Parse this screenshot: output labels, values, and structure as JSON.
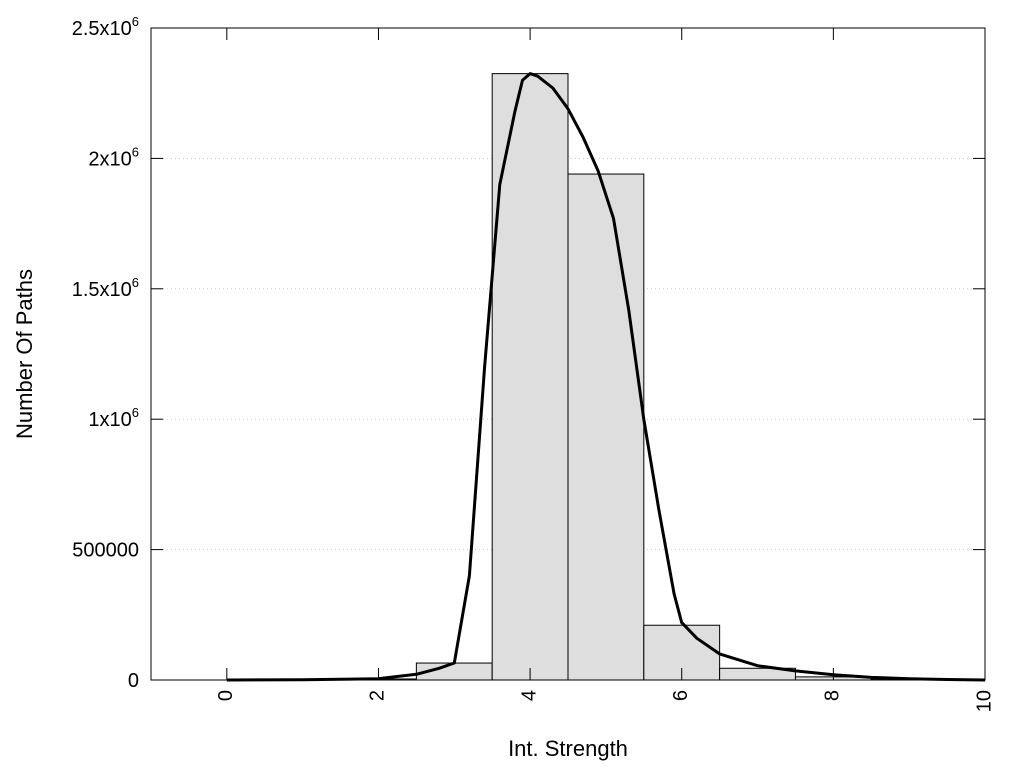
{
  "chart_data": {
    "type": "bar",
    "title": "",
    "xlabel": "Int. Strength",
    "ylabel": "Number Of Paths",
    "xlim": [
      -1,
      10
    ],
    "ylim": [
      0,
      2500000
    ],
    "grid": {
      "y": true,
      "x": false
    },
    "x_ticks": [
      {
        "value": 0,
        "label": "0"
      },
      {
        "value": 2,
        "label": "2"
      },
      {
        "value": 4,
        "label": "4"
      },
      {
        "value": 6,
        "label": "6"
      },
      {
        "value": 8,
        "label": "8"
      },
      {
        "value": 10,
        "label": "10"
      }
    ],
    "y_ticks": [
      {
        "value": 0,
        "base": "0",
        "sup": ""
      },
      {
        "value": 500000,
        "base": "500000",
        "sup": ""
      },
      {
        "value": 1000000,
        "base": "1x10",
        "sup": "6"
      },
      {
        "value": 1500000,
        "base": "1.5x10",
        "sup": "6"
      },
      {
        "value": 2000000,
        "base": "2x10",
        "sup": "6"
      },
      {
        "value": 2500000,
        "base": "2.5x10",
        "sup": "6"
      }
    ],
    "bar_width": 1,
    "bars": [
      {
        "x": 0,
        "value": 0
      },
      {
        "x": 1,
        "value": 1000
      },
      {
        "x": 2,
        "value": 4000
      },
      {
        "x": 3,
        "value": 65000
      },
      {
        "x": 4,
        "value": 2325000
      },
      {
        "x": 5,
        "value": 1940000
      },
      {
        "x": 6,
        "value": 210000
      },
      {
        "x": 7,
        "value": 45000
      },
      {
        "x": 8,
        "value": 12000
      },
      {
        "x": 9,
        "value": 4000
      },
      {
        "x": 10,
        "value": 2000
      }
    ],
    "curve": {
      "x": [
        0,
        1,
        2,
        2.5,
        2.8,
        3.0,
        3.2,
        3.4,
        3.6,
        3.8,
        3.9,
        4.0,
        4.1,
        4.3,
        4.5,
        4.7,
        4.9,
        5.1,
        5.3,
        5.5,
        5.7,
        5.9,
        6.0,
        6.2,
        6.5,
        7.0,
        7.5,
        8.0,
        8.5,
        9.0,
        9.5,
        10.0
      ],
      "y": [
        0,
        1000,
        5000,
        22000,
        45000,
        65000,
        400000,
        1200000,
        1900000,
        2180000,
        2300000,
        2325000,
        2315000,
        2270000,
        2190000,
        2080000,
        1950000,
        1770000,
        1420000,
        1000000,
        650000,
        330000,
        220000,
        160000,
        100000,
        55000,
        35000,
        20000,
        10000,
        5000,
        2000,
        0
      ]
    }
  }
}
